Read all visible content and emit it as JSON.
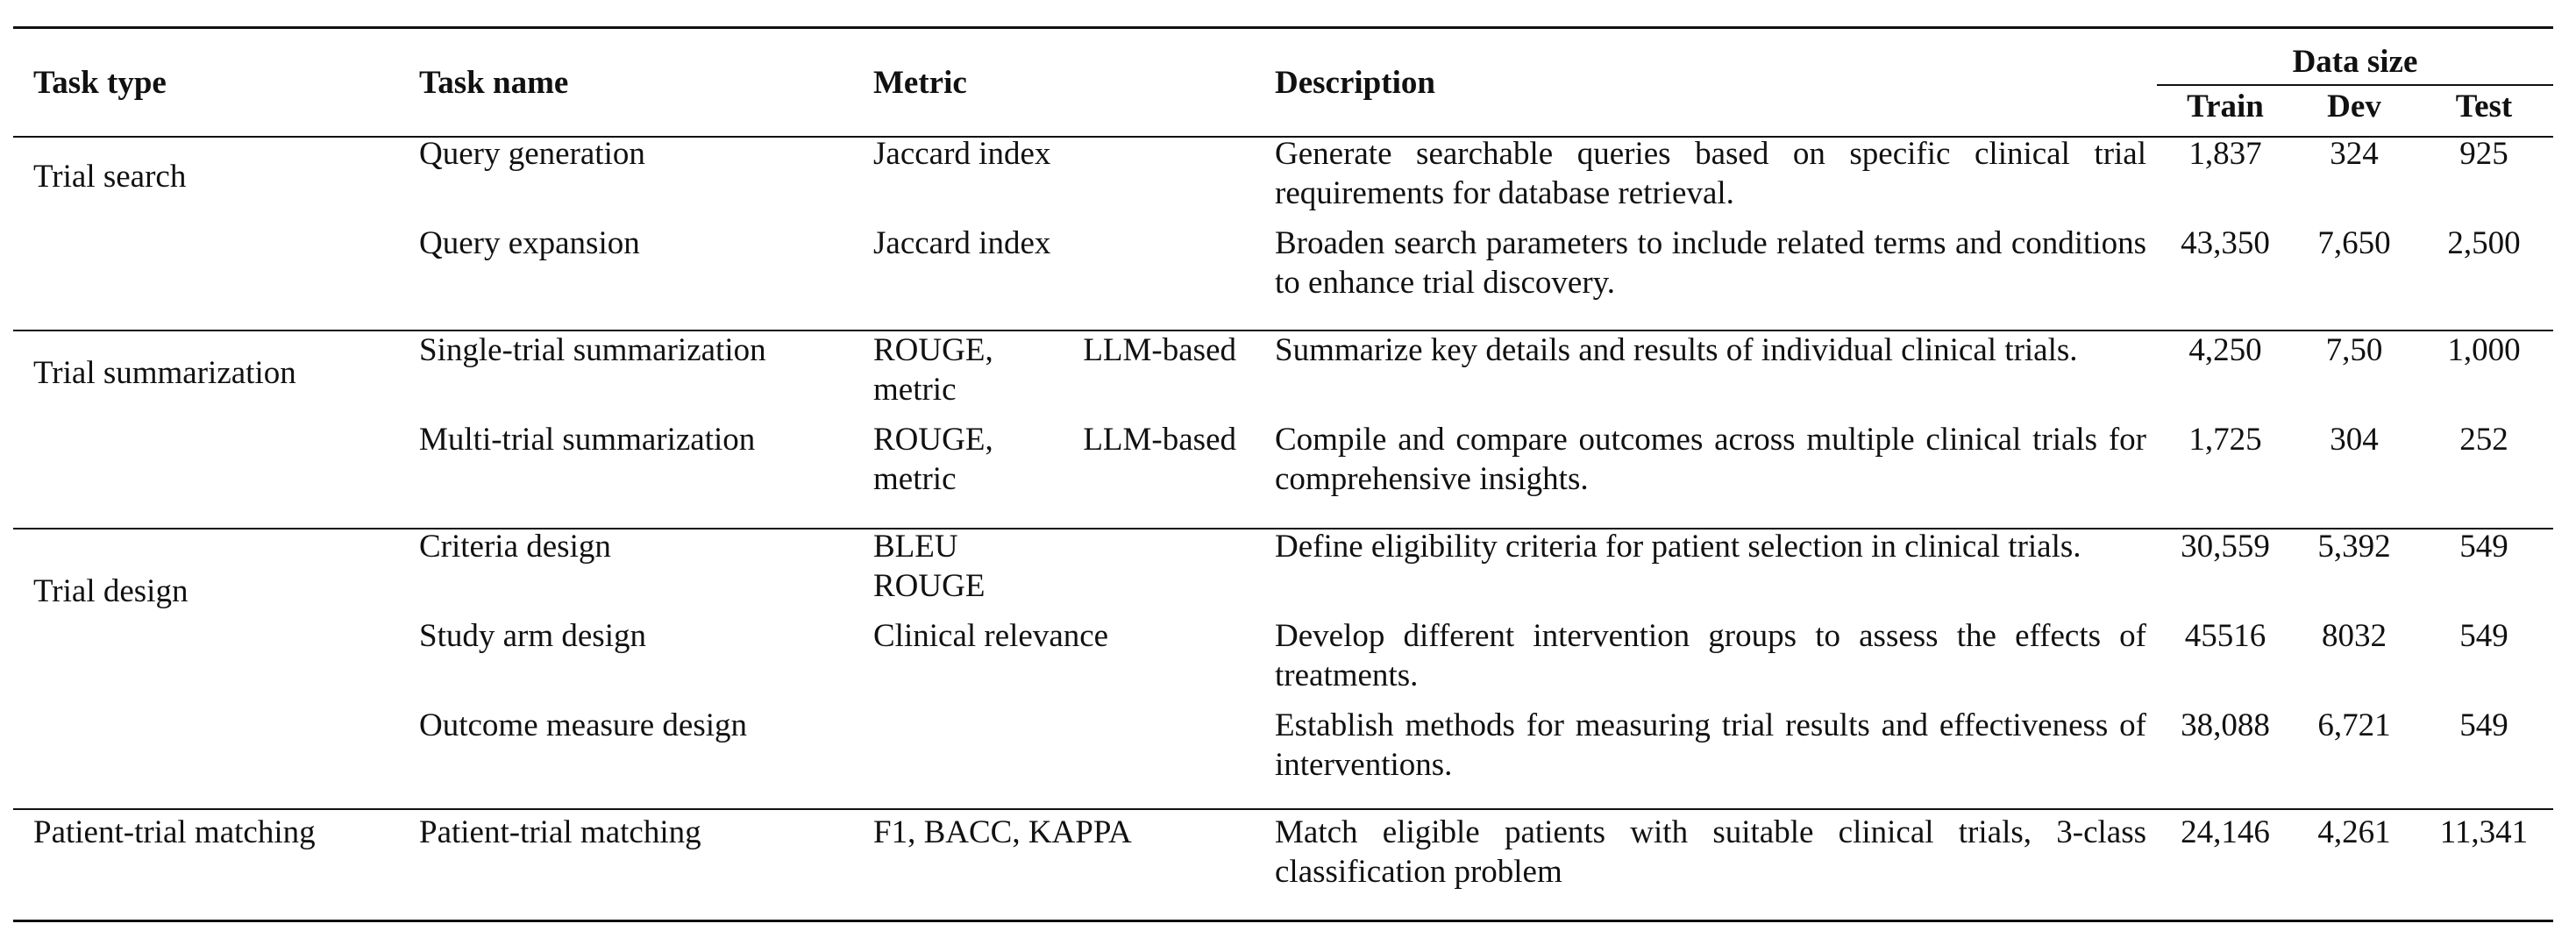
{
  "header": {
    "task_type": "Task type",
    "task_name": "Task name",
    "metric": "Metric",
    "description": "Description",
    "data_size": "Data size",
    "train": "Train",
    "dev": "Dev",
    "test": "Test"
  },
  "groups": [
    {
      "task_type": "Trial search",
      "rows": [
        {
          "task_name": "Query generation",
          "metric": "Jaccard index",
          "description": "Generate searchable queries based on specific clinical trial requirements for database retrieval.",
          "train": "1,837",
          "dev": "324",
          "test": "925"
        },
        {
          "task_name": "Query expansion",
          "metric": "Jaccard index",
          "description": "Broaden search parameters to include related terms and conditions to enhance trial discovery.",
          "train": "43,350",
          "dev": "7,650",
          "test": "2,500"
        }
      ]
    },
    {
      "task_type": "Trial summarization",
      "rows": [
        {
          "task_name": "Single-trial summarization",
          "metric": "ROUGE, LLM-based metric",
          "description": "Summarize key details and results of individual clinical trials.",
          "train": "4,250",
          "dev": "7,50",
          "test": "1,000"
        },
        {
          "task_name": "Multi-trial summarization",
          "metric": "ROUGE, LLM-based metric",
          "description": "Compile and compare outcomes across multiple clinical trials for comprehensive insights.",
          "train": "1,725",
          "dev": "304",
          "test": "252"
        }
      ]
    },
    {
      "task_type": "Trial design",
      "rows": [
        {
          "task_name": "Criteria design",
          "metric": "BLEU",
          "description": "Define eligibility criteria for patient selection in clinical trials.",
          "train": "30,559",
          "dev": "5,392",
          "test": "549"
        },
        {
          "task_name": "Study arm design",
          "metric": "Clinical relevance",
          "description": "Develop different intervention groups to assess the effects of treatments.",
          "train": "45516",
          "dev": "8032",
          "test": "549"
        },
        {
          "task_name": "Outcome measure design",
          "metric": "",
          "description": "Establish methods for measuring trial results and effec­tiveness of interventions.",
          "train": "38,088",
          "dev": "6,721",
          "test": "549"
        }
      ],
      "metric_extra": "ROUGE"
    },
    {
      "task_type": "Patient-trial matching",
      "rows": [
        {
          "task_name": "Patient-trial matching",
          "metric": "F1, BACC, KAPPA",
          "description": "Match eligible patients with suitable clinical trials, 3-class classification problem",
          "train": "24,146",
          "dev": "4,261",
          "test": "11,341"
        }
      ]
    }
  ]
}
